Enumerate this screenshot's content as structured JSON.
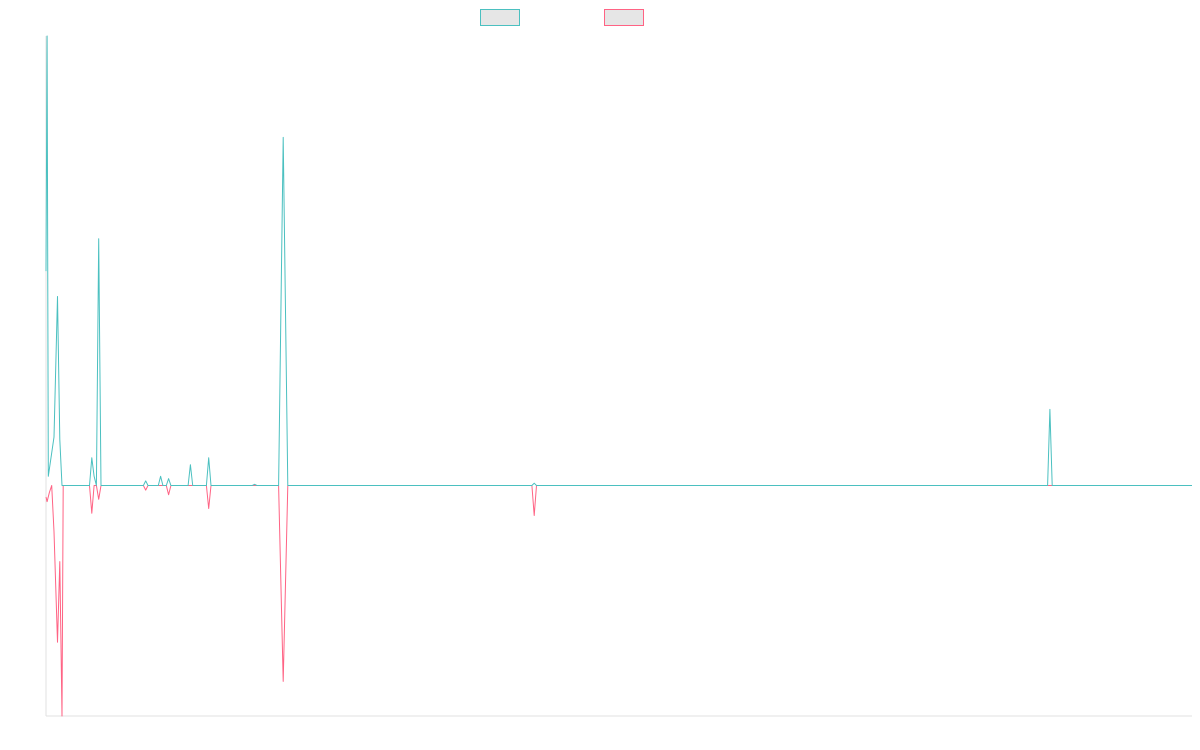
{
  "colors": {
    "series_a": "#4bc0c0",
    "series_b": "#ff6384",
    "axis": "#e0e0e0",
    "legend_fill": "#e6e6e6"
  },
  "legend": {
    "position": "top-center",
    "items": [
      {
        "label": ""
      },
      {
        "label": ""
      }
    ]
  },
  "chart_data": {
    "type": "line",
    "title": "",
    "xlabel": "",
    "ylabel": "",
    "grid": false,
    "x_axis_visible": true,
    "y_axis_visible": true,
    "x_range": [
      0,
      1000
    ],
    "ylim": [
      -100,
      195
    ],
    "baseline": 0,
    "series": [
      {
        "color": "#4bc0c0",
        "points": [
          [
            0,
            93
          ],
          [
            1,
            195
          ],
          [
            2,
            4
          ],
          [
            7,
            21
          ],
          [
            10,
            82
          ],
          [
            12,
            20
          ],
          [
            14,
            0
          ],
          [
            38,
            0
          ],
          [
            40,
            12
          ],
          [
            42,
            4
          ],
          [
            44,
            0
          ],
          [
            46,
            107
          ],
          [
            48,
            0
          ],
          [
            85,
            0
          ],
          [
            87,
            2
          ],
          [
            89,
            0
          ],
          [
            98,
            0
          ],
          [
            100,
            4
          ],
          [
            102,
            0
          ],
          [
            105,
            0
          ],
          [
            107,
            3
          ],
          [
            109,
            0
          ],
          [
            124,
            0
          ],
          [
            126,
            9
          ],
          [
            128,
            0
          ],
          [
            140,
            0
          ],
          [
            142,
            12
          ],
          [
            144,
            0
          ],
          [
            180,
            0
          ],
          [
            182,
            0.5
          ],
          [
            184,
            0
          ],
          [
            203,
            0
          ],
          [
            207,
            151
          ],
          [
            211,
            0
          ],
          [
            424,
            0
          ],
          [
            426,
            1
          ],
          [
            428,
            0
          ],
          [
            874,
            0
          ],
          [
            876,
            33
          ],
          [
            878,
            0
          ],
          [
            1000,
            0
          ]
        ]
      },
      {
        "color": "#ff6384",
        "points": [
          [
            0,
            -5
          ],
          [
            1,
            -7
          ],
          [
            3,
            -3
          ],
          [
            5,
            0
          ],
          [
            7,
            -20
          ],
          [
            10,
            -68
          ],
          [
            12,
            -33
          ],
          [
            14,
            -100
          ],
          [
            15,
            0
          ],
          [
            38,
            0
          ],
          [
            40,
            -12
          ],
          [
            42,
            0
          ],
          [
            44,
            0
          ],
          [
            46,
            -6
          ],
          [
            48,
            0
          ],
          [
            85,
            0
          ],
          [
            87,
            -2
          ],
          [
            89,
            0
          ],
          [
            105,
            0
          ],
          [
            107,
            -4
          ],
          [
            109,
            0
          ],
          [
            140,
            0
          ],
          [
            142,
            -10
          ],
          [
            144,
            0
          ],
          [
            203,
            0
          ],
          [
            207,
            -85
          ],
          [
            211,
            0
          ],
          [
            424,
            0
          ],
          [
            426,
            -13
          ],
          [
            428,
            0
          ],
          [
            1000,
            0
          ]
        ]
      }
    ]
  }
}
